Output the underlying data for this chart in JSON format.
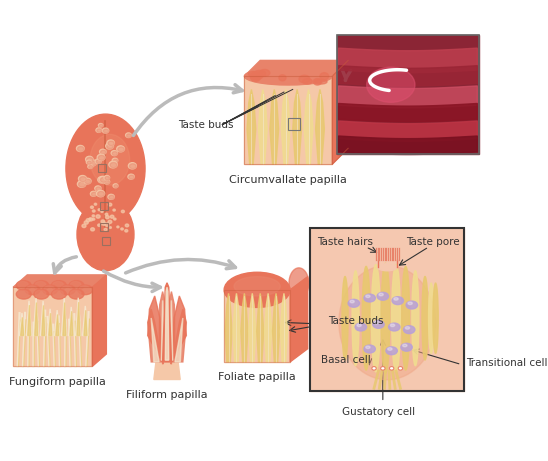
{
  "bg_color": "#ffffff",
  "tongue_color": "#E8745A",
  "tongue_dark": "#C85A3A",
  "tongue_light": "#F09070",
  "papilla_pink": "#E8836A",
  "papilla_light": "#F5C8A8",
  "papilla_peach": "#FADADC",
  "cream_color": "#F5E8D0",
  "yellow_color": "#E8C870",
  "yellow_light": "#F0DC90",
  "purple_cell": "#B8A0D8",
  "arrow_color": "#BBBBBB",
  "arrow_dark": "#999999",
  "text_color": "#333333",
  "micro_bg": "#7A2535",
  "micro_mid": "#C05060",
  "micro_dark": "#5A1525",
  "box_bg": "#F8D0B8",
  "labels": {
    "taste_buds_circ": "Taste buds",
    "circumvallate": "Circumvallate papilla",
    "fungiform": "Fungiform papilla",
    "filiform": "Filiform papilla",
    "foliate": "Foliate papilla",
    "taste_buds_fol": "Taste buds",
    "taste_hairs": "Taste hairs",
    "taste_pore": "Taste pore",
    "basal_cell": "Basal cell",
    "gustatory_cell": "Gustatory cell",
    "transitional_cell": "Transitional cell"
  }
}
